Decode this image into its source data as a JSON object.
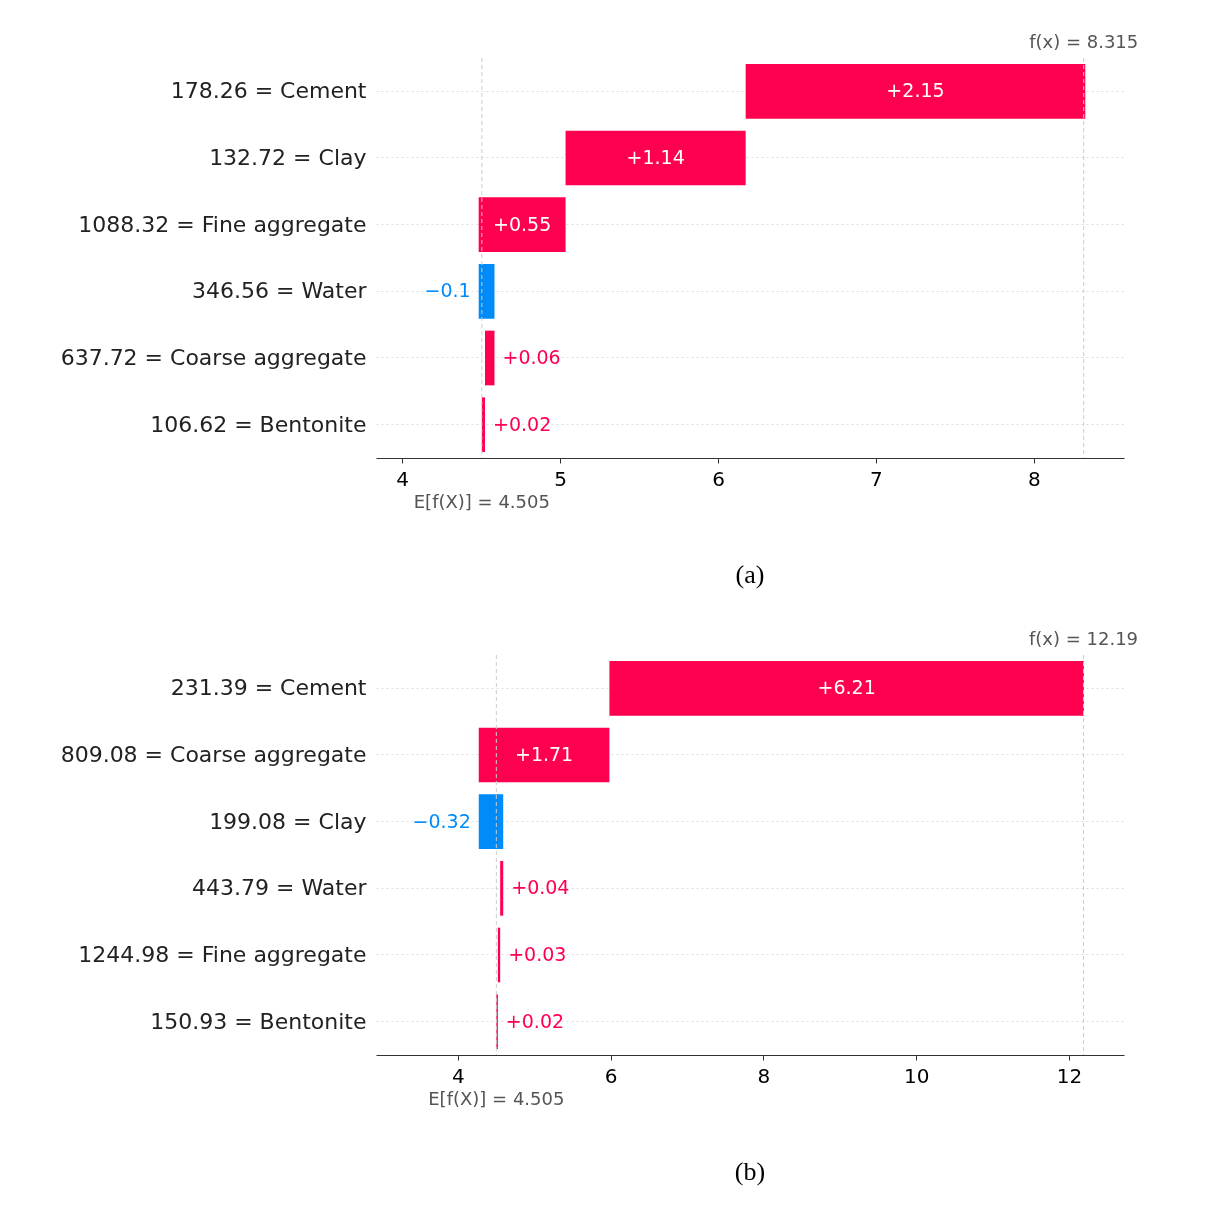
{
  "chart_data": [
    {
      "type": "bar",
      "orientation": "horizontal",
      "title": "(a)",
      "categories": [
        "178.26 = Cement",
        "132.72 = Clay",
        "1088.32 = Fine aggregate",
        "346.56 = Water",
        "637.72 = Coarse aggregate",
        "106.62 = Bentonite"
      ],
      "values": [
        2.15,
        1.14,
        0.55,
        -0.1,
        0.06,
        0.02
      ],
      "base": [
        6.175,
        5.035,
        4.485,
        4.585,
        4.525,
        4.505
      ],
      "colors": [
        "#ff0051",
        "#ff0051",
        "#ff0051",
        "#008bfb",
        "#ff0051",
        "#ff0051"
      ],
      "value_labels": [
        "+2.15",
        "+1.14",
        "+0.55",
        "−0.1",
        "+0.06",
        "+0.02"
      ],
      "xlim": [
        3.835,
        8.57
      ],
      "xticks": [
        4,
        5,
        6,
        7,
        8
      ],
      "grid": "y",
      "ref_lines": [
        {
          "axis": "x",
          "value": 8.315,
          "label": "f(x) = 8.315",
          "color": "#cccccc",
          "line_style": "dashed"
        },
        {
          "axis": "x",
          "value": 4.505,
          "label": "E[f(X)] = 4.505",
          "color": "#cccccc",
          "line_style": "dashed"
        }
      ]
    },
    {
      "type": "bar",
      "orientation": "horizontal",
      "title": "(b)",
      "categories": [
        "231.39 = Cement",
        "809.08 = Coarse aggregate",
        "199.08 = Clay",
        "443.79 = Water",
        "1244.98 = Fine aggregate",
        "150.93 = Bentonite"
      ],
      "values": [
        6.21,
        1.71,
        -0.32,
        0.04,
        0.03,
        0.02
      ],
      "base": [
        5.985,
        4.275,
        4.595,
        4.555,
        4.525,
        4.505
      ],
      "colors": [
        "#ff0051",
        "#ff0051",
        "#008bfb",
        "#ff0051",
        "#ff0051",
        "#ff0051"
      ],
      "value_labels": [
        "+6.21",
        "+1.71",
        "−0.32",
        "+0.04",
        "+0.03",
        "+0.02"
      ],
      "xlim": [
        2.93,
        12.72
      ],
      "xticks": [
        4,
        6,
        8,
        10,
        12
      ],
      "grid": "y",
      "ref_lines": [
        {
          "axis": "x",
          "value": 12.19,
          "label": "f(x) = 12.19",
          "color": "#cccccc",
          "line_style": "dashed"
        },
        {
          "axis": "x",
          "value": 4.505,
          "label": "E[f(X)] = 4.505",
          "color": "#cccccc",
          "line_style": "dashed"
        }
      ]
    }
  ]
}
